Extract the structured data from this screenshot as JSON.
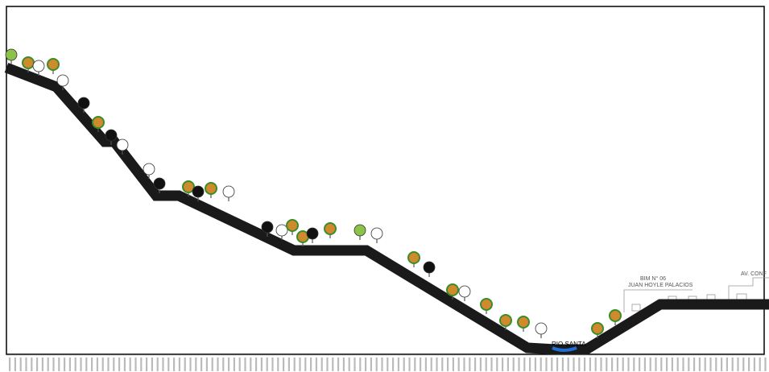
{
  "labels": {
    "river": "RIO SANTA",
    "school_line1": "BIM N° 06",
    "school_line2": "JUAN HOYLE PALACIOS",
    "avenue": "AV. CONF"
  }
}
